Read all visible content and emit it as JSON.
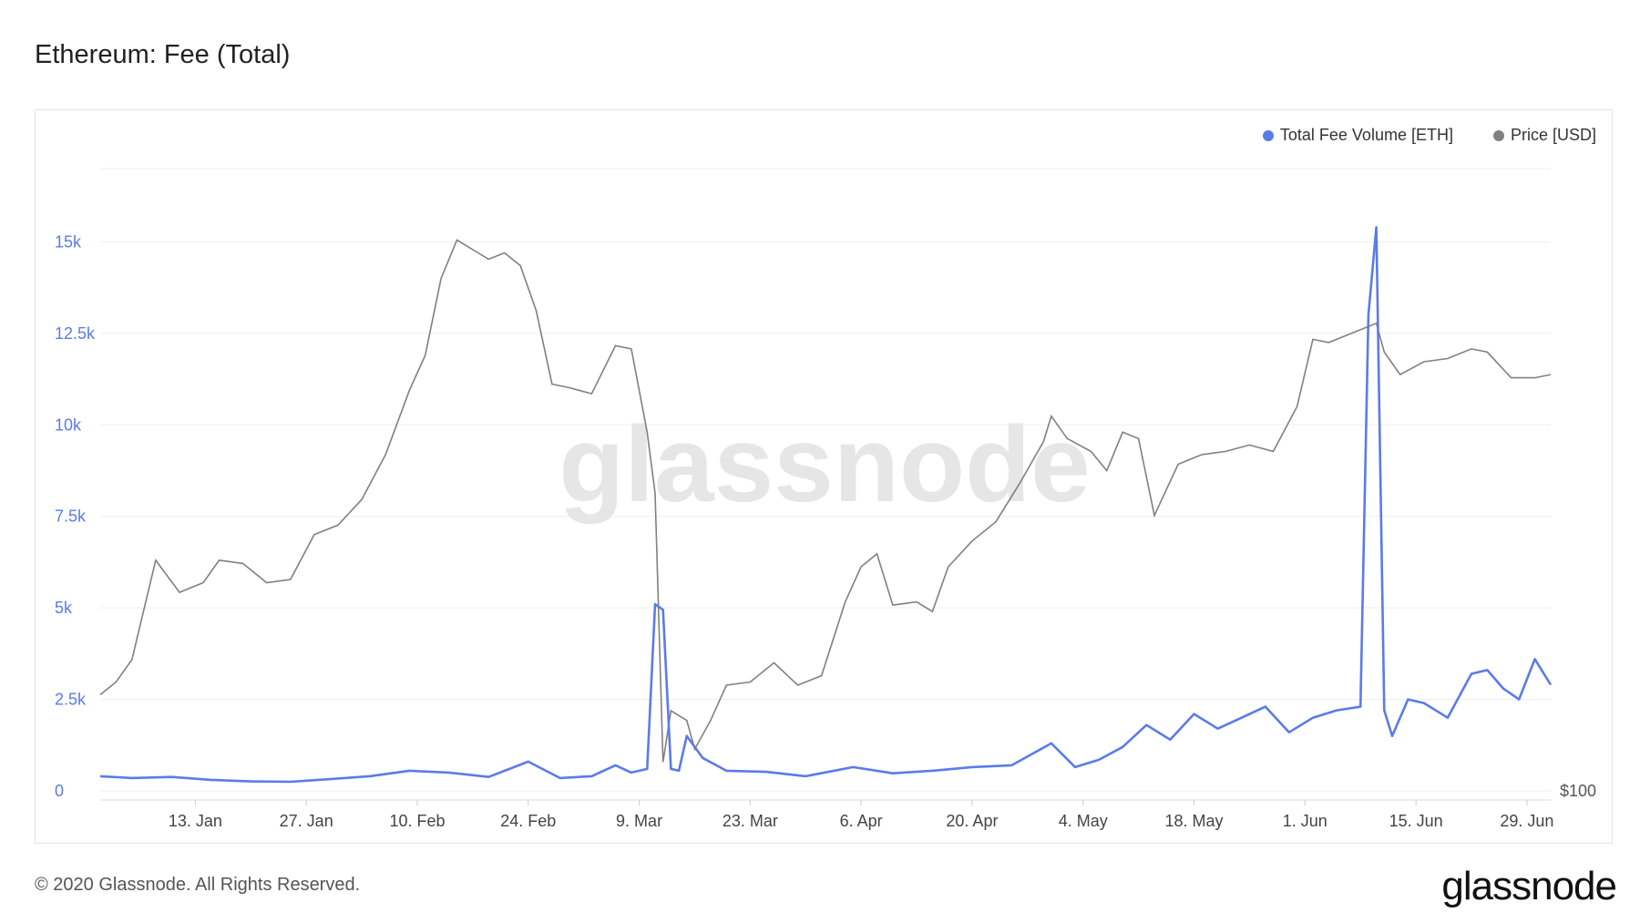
{
  "title": "Ethereum: Fee (Total)",
  "footer": "© 2020 Glassnode. All Rights Reserved.",
  "brand": "glassnode",
  "watermark": "glassnode",
  "colors": {
    "fee": "#5b7be8",
    "price": "#808080",
    "grid": "#eeeeee",
    "axis_left": "#5b7be8"
  },
  "chart_data": {
    "type": "line",
    "title": "Ethereum: Fee (Total)",
    "legend": {
      "placement": "top-right",
      "entries": [
        "Total Fee Volume [ETH]",
        "Price [USD]"
      ]
    },
    "x_ticks": [
      "13. Jan",
      "27. Jan",
      "10. Feb",
      "24. Feb",
      "9. Mar",
      "23. Mar",
      "6. Apr",
      "20. Apr",
      "4. May",
      "18. May",
      "1. Jun",
      "15. Jun",
      "29. Jun"
    ],
    "y_ticks_left": [
      "0",
      "2.5k",
      "5k",
      "7.5k",
      "10k",
      "12.5k",
      "15k"
    ],
    "y_right_label": "$100",
    "ylim_left": [
      0,
      17500
    ],
    "grid": true,
    "series": [
      {
        "name": "Total Fee Volume [ETH]",
        "axis": "left",
        "x": [
          "2020-01-01",
          "2020-01-05",
          "2020-01-10",
          "2020-01-15",
          "2020-01-20",
          "2020-01-25",
          "2020-01-30",
          "2020-02-04",
          "2020-02-09",
          "2020-02-14",
          "2020-02-19",
          "2020-02-24",
          "2020-02-28",
          "2020-03-03",
          "2020-03-06",
          "2020-03-08",
          "2020-03-10",
          "2020-03-11",
          "2020-03-12",
          "2020-03-13",
          "2020-03-14",
          "2020-03-15",
          "2020-03-17",
          "2020-03-20",
          "2020-03-25",
          "2020-03-30",
          "2020-04-05",
          "2020-04-10",
          "2020-04-15",
          "2020-04-20",
          "2020-04-25",
          "2020-04-30",
          "2020-05-03",
          "2020-05-06",
          "2020-05-09",
          "2020-05-12",
          "2020-05-15",
          "2020-05-18",
          "2020-05-21",
          "2020-05-24",
          "2020-05-27",
          "2020-05-30",
          "2020-06-02",
          "2020-06-05",
          "2020-06-08",
          "2020-06-09",
          "2020-06-10",
          "2020-06-11",
          "2020-06-12",
          "2020-06-14",
          "2020-06-16",
          "2020-06-19",
          "2020-06-22",
          "2020-06-24",
          "2020-06-26",
          "2020-06-28",
          "2020-06-30",
          "2020-07-02"
        ],
        "values": [
          400,
          350,
          380,
          300,
          260,
          250,
          320,
          400,
          550,
          500,
          380,
          800,
          350,
          400,
          700,
          500,
          600,
          5100,
          4950,
          600,
          550,
          1500,
          900,
          550,
          520,
          400,
          650,
          480,
          550,
          650,
          700,
          1300,
          650,
          850,
          1200,
          1800,
          1400,
          2100,
          1700,
          2000,
          2300,
          1600,
          2000,
          2200,
          2300,
          13000,
          15400,
          2200,
          1500,
          2500,
          2400,
          2000,
          3200,
          3300,
          2800,
          2500,
          3600,
          2900
        ]
      },
      {
        "name": "Price [USD]",
        "axis": "right",
        "x": [
          "2020-01-01",
          "2020-01-03",
          "2020-01-05",
          "2020-01-08",
          "2020-01-11",
          "2020-01-14",
          "2020-01-16",
          "2020-01-19",
          "2020-01-22",
          "2020-01-25",
          "2020-01-28",
          "2020-01-31",
          "2020-02-03",
          "2020-02-06",
          "2020-02-09",
          "2020-02-11",
          "2020-02-13",
          "2020-02-15",
          "2020-02-17",
          "2020-02-19",
          "2020-02-21",
          "2020-02-23",
          "2020-02-25",
          "2020-02-27",
          "2020-02-29",
          "2020-03-03",
          "2020-03-06",
          "2020-03-08",
          "2020-03-10",
          "2020-03-11",
          "2020-03-12",
          "2020-03-13",
          "2020-03-15",
          "2020-03-16",
          "2020-03-18",
          "2020-03-20",
          "2020-03-23",
          "2020-03-26",
          "2020-03-29",
          "2020-04-01",
          "2020-04-04",
          "2020-04-06",
          "2020-04-08",
          "2020-04-10",
          "2020-04-13",
          "2020-04-15",
          "2020-04-17",
          "2020-04-20",
          "2020-04-23",
          "2020-04-26",
          "2020-04-29",
          "2020-04-30",
          "2020-05-02",
          "2020-05-05",
          "2020-05-07",
          "2020-05-09",
          "2020-05-11",
          "2020-05-13",
          "2020-05-16",
          "2020-05-19",
          "2020-05-22",
          "2020-05-25",
          "2020-05-28",
          "2020-05-31",
          "2020-06-02",
          "2020-06-04",
          "2020-06-07",
          "2020-06-10",
          "2020-06-11",
          "2020-06-13",
          "2020-06-16",
          "2020-06-19",
          "2020-06-22",
          "2020-06-24",
          "2020-06-27",
          "2020-06-30",
          "2020-07-02"
        ],
        "values": [
          130,
          134,
          141,
          172,
          162,
          165,
          172,
          171,
          165,
          166,
          180,
          183,
          191,
          205,
          225,
          236,
          260,
          272,
          269,
          266,
          268,
          264,
          250,
          227,
          226,
          224,
          239,
          238,
          212,
          193,
          109,
          125,
          122,
          113,
          122,
          133,
          134,
          140,
          133,
          136,
          159,
          170,
          174,
          158,
          159,
          156,
          170,
          178,
          184,
          196,
          209,
          217,
          210,
          206,
          200,
          212,
          210,
          186,
          202,
          205,
          206,
          208,
          206,
          220,
          241,
          240,
          243,
          246,
          237,
          230,
          234,
          235,
          238,
          237,
          229,
          229,
          230
        ]
      }
    ]
  }
}
